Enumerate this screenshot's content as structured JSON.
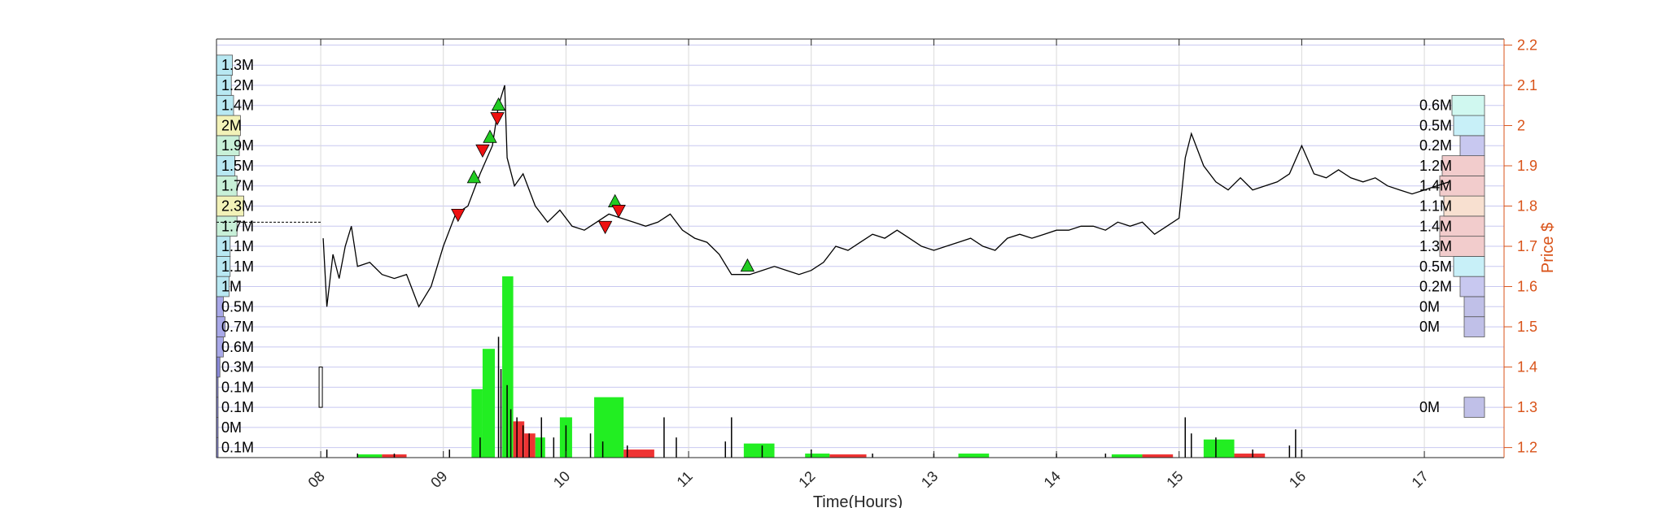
{
  "chart_data": {
    "type": "candlestick-volume",
    "xlabel": "Time(Hours)",
    "ylabel": "Price $",
    "x_ticks": [
      "08",
      "09",
      "10",
      "11",
      "12",
      "13",
      "14",
      "15",
      "16",
      "17"
    ],
    "xlim": [
      7.15,
      17.65
    ],
    "ylim": [
      1.175,
      2.215
    ],
    "y_ticks": [
      1.2,
      1.3,
      1.4,
      1.5,
      1.6,
      1.7,
      1.8,
      1.9,
      2.0,
      2.1,
      2.2
    ],
    "y_tick_labels": [
      "1.2",
      "1.3",
      "1.4",
      "1.5",
      "1.6",
      "1.7",
      "1.8",
      "1.9",
      "2",
      "2.1",
      "2.2"
    ],
    "colors": {
      "price_axis": "#D95319",
      "grid": "#C8C8F0",
      "buy_volume": "#22EE22",
      "sell_volume": "#EE3333",
      "buy_marker": "#22CC22",
      "sell_marker": "#EE1111"
    },
    "price_series": {
      "points": [
        [
          8.02,
          1.72
        ],
        [
          8.05,
          1.55
        ],
        [
          8.1,
          1.68
        ],
        [
          8.15,
          1.62
        ],
        [
          8.2,
          1.7
        ],
        [
          8.25,
          1.75
        ],
        [
          8.3,
          1.65
        ],
        [
          8.4,
          1.66
        ],
        [
          8.5,
          1.63
        ],
        [
          8.6,
          1.62
        ],
        [
          8.7,
          1.63
        ],
        [
          8.8,
          1.55
        ],
        [
          8.9,
          1.6
        ],
        [
          9.0,
          1.7
        ],
        [
          9.1,
          1.78
        ],
        [
          9.2,
          1.8
        ],
        [
          9.3,
          1.88
        ],
        [
          9.4,
          1.95
        ],
        [
          9.45,
          2.05
        ],
        [
          9.5,
          2.1
        ],
        [
          9.52,
          1.92
        ],
        [
          9.58,
          1.85
        ],
        [
          9.65,
          1.88
        ],
        [
          9.75,
          1.8
        ],
        [
          9.85,
          1.76
        ],
        [
          9.95,
          1.79
        ],
        [
          10.05,
          1.75
        ],
        [
          10.15,
          1.74
        ],
        [
          10.25,
          1.76
        ],
        [
          10.35,
          1.78
        ],
        [
          10.45,
          1.77
        ],
        [
          10.55,
          1.76
        ],
        [
          10.65,
          1.75
        ],
        [
          10.75,
          1.76
        ],
        [
          10.85,
          1.78
        ],
        [
          10.95,
          1.74
        ],
        [
          11.05,
          1.72
        ],
        [
          11.15,
          1.71
        ],
        [
          11.25,
          1.68
        ],
        [
          11.35,
          1.63
        ],
        [
          11.5,
          1.63
        ],
        [
          11.6,
          1.64
        ],
        [
          11.7,
          1.65
        ],
        [
          11.8,
          1.64
        ],
        [
          11.9,
          1.63
        ],
        [
          12.0,
          1.64
        ],
        [
          12.1,
          1.66
        ],
        [
          12.2,
          1.7
        ],
        [
          12.3,
          1.69
        ],
        [
          12.4,
          1.71
        ],
        [
          12.5,
          1.73
        ],
        [
          12.6,
          1.72
        ],
        [
          12.7,
          1.74
        ],
        [
          12.8,
          1.72
        ],
        [
          12.9,
          1.7
        ],
        [
          13.0,
          1.69
        ],
        [
          13.1,
          1.7
        ],
        [
          13.2,
          1.71
        ],
        [
          13.3,
          1.72
        ],
        [
          13.4,
          1.7
        ],
        [
          13.5,
          1.69
        ],
        [
          13.6,
          1.72
        ],
        [
          13.7,
          1.73
        ],
        [
          13.8,
          1.72
        ],
        [
          13.9,
          1.73
        ],
        [
          14.0,
          1.74
        ],
        [
          14.1,
          1.74
        ],
        [
          14.2,
          1.75
        ],
        [
          14.3,
          1.75
        ],
        [
          14.4,
          1.74
        ],
        [
          14.5,
          1.76
        ],
        [
          14.6,
          1.75
        ],
        [
          14.7,
          1.76
        ],
        [
          14.8,
          1.73
        ],
        [
          14.9,
          1.75
        ],
        [
          15.0,
          1.77
        ],
        [
          15.05,
          1.92
        ],
        [
          15.1,
          1.98
        ],
        [
          15.2,
          1.9
        ],
        [
          15.3,
          1.86
        ],
        [
          15.4,
          1.84
        ],
        [
          15.5,
          1.87
        ],
        [
          15.6,
          1.84
        ],
        [
          15.7,
          1.85
        ],
        [
          15.8,
          1.86
        ],
        [
          15.9,
          1.88
        ],
        [
          16.0,
          1.95
        ],
        [
          16.1,
          1.88
        ],
        [
          16.2,
          1.87
        ],
        [
          16.3,
          1.89
        ],
        [
          16.4,
          1.87
        ],
        [
          16.5,
          1.86
        ],
        [
          16.6,
          1.87
        ],
        [
          16.7,
          1.85
        ],
        [
          16.8,
          1.84
        ],
        [
          16.9,
          1.83
        ],
        [
          17.0,
          1.84
        ],
        [
          17.1,
          1.85
        ],
        [
          17.2,
          1.86
        ]
      ]
    },
    "early_trade": {
      "x": 8.0,
      "y_low": 1.3,
      "y_high": 1.4
    },
    "prev_close_line": {
      "x_start": 7.15,
      "x_end": 8.0,
      "y": 1.76
    },
    "buy_markers": [
      [
        9.25,
        1.87
      ],
      [
        9.38,
        1.97
      ],
      [
        9.45,
        2.05
      ],
      [
        10.4,
        1.81
      ],
      [
        11.48,
        1.65
      ]
    ],
    "sell_markers": [
      [
        9.12,
        1.78
      ],
      [
        9.32,
        1.94
      ],
      [
        9.44,
        2.02
      ],
      [
        10.32,
        1.75
      ],
      [
        10.43,
        1.79
      ]
    ],
    "volume_bars": [
      {
        "x0": 9.23,
        "x1": 9.32,
        "v": 0.17,
        "side": "buy"
      },
      {
        "x0": 9.32,
        "x1": 9.42,
        "v": 0.27,
        "side": "buy"
      },
      {
        "x0": 9.48,
        "x1": 9.57,
        "v": 0.45,
        "side": "buy"
      },
      {
        "x0": 9.57,
        "x1": 9.66,
        "v": 0.09,
        "side": "sell"
      },
      {
        "x0": 9.66,
        "x1": 9.75,
        "v": 0.06,
        "side": "sell"
      },
      {
        "x0": 9.75,
        "x1": 9.83,
        "v": 0.05,
        "side": "buy"
      },
      {
        "x0": 9.95,
        "x1": 10.05,
        "v": 0.1,
        "side": "buy"
      },
      {
        "x0": 10.23,
        "x1": 10.47,
        "v": 0.15,
        "side": "buy"
      },
      {
        "x0": 10.47,
        "x1": 10.72,
        "v": 0.02,
        "side": "sell"
      },
      {
        "x0": 11.45,
        "x1": 11.7,
        "v": 0.035,
        "side": "buy"
      },
      {
        "x0": 11.95,
        "x1": 12.15,
        "v": 0.01,
        "side": "buy"
      },
      {
        "x0": 12.15,
        "x1": 12.45,
        "v": 0.008,
        "side": "sell"
      },
      {
        "x0": 13.2,
        "x1": 13.45,
        "v": 0.01,
        "side": "buy"
      },
      {
        "x0": 14.45,
        "x1": 14.7,
        "v": 0.008,
        "side": "buy"
      },
      {
        "x0": 14.7,
        "x1": 14.95,
        "v": 0.008,
        "side": "sell"
      },
      {
        "x0": 15.2,
        "x1": 15.45,
        "v": 0.045,
        "side": "buy"
      },
      {
        "x0": 15.45,
        "x1": 15.7,
        "v": 0.01,
        "side": "sell"
      },
      {
        "x0": 8.3,
        "x1": 8.5,
        "v": 0.008,
        "side": "buy"
      },
      {
        "x0": 8.5,
        "x1": 8.7,
        "v": 0.008,
        "side": "sell"
      }
    ],
    "volume_spikes": [
      [
        8.05,
        0.02
      ],
      [
        8.3,
        0.01
      ],
      [
        8.6,
        0.01
      ],
      [
        9.05,
        0.02
      ],
      [
        9.3,
        0.05
      ],
      [
        9.45,
        0.3
      ],
      [
        9.47,
        0.22
      ],
      [
        9.52,
        0.18
      ],
      [
        9.55,
        0.12
      ],
      [
        9.6,
        0.1
      ],
      [
        9.65,
        0.08
      ],
      [
        9.7,
        0.06
      ],
      [
        9.8,
        0.1
      ],
      [
        9.9,
        0.05
      ],
      [
        10.0,
        0.08
      ],
      [
        10.2,
        0.06
      ],
      [
        10.3,
        0.04
      ],
      [
        10.5,
        0.03
      ],
      [
        10.8,
        0.1
      ],
      [
        10.9,
        0.05
      ],
      [
        11.3,
        0.04
      ],
      [
        11.35,
        0.1
      ],
      [
        11.6,
        0.03
      ],
      [
        12.0,
        0.02
      ],
      [
        12.5,
        0.01
      ],
      [
        13.0,
        0.01
      ],
      [
        14.0,
        0.01
      ],
      [
        14.4,
        0.01
      ],
      [
        15.05,
        0.1
      ],
      [
        15.1,
        0.06
      ],
      [
        15.3,
        0.05
      ],
      [
        15.6,
        0.02
      ],
      [
        15.9,
        0.03
      ],
      [
        15.95,
        0.07
      ],
      [
        16.0,
        0.02
      ]
    ],
    "left_profile": [
      {
        "price": 1.2,
        "label": "0.1M",
        "rel": 0.01,
        "color": "#8A8ADB"
      },
      {
        "price": 1.25,
        "label": "0M",
        "rel": 0.0,
        "color": "#8A8ADB"
      },
      {
        "price": 1.3,
        "label": "0.1M",
        "rel": 0.01,
        "color": "#8A8ADB"
      },
      {
        "price": 1.35,
        "label": "0.1M",
        "rel": 0.01,
        "color": "#8A8ADB"
      },
      {
        "price": 1.4,
        "label": "0.3M",
        "rel": 0.06,
        "color": "#8A8ADB"
      },
      {
        "price": 1.45,
        "label": "0.6M",
        "rel": 0.12,
        "color": "#A8A8E8"
      },
      {
        "price": 1.5,
        "label": "0.7M",
        "rel": 0.15,
        "color": "#A8A8E8"
      },
      {
        "price": 1.55,
        "label": "0.5M",
        "rel": 0.12,
        "color": "#A8A8E8"
      },
      {
        "price": 1.6,
        "label": "1M",
        "rel": 0.22,
        "color": "#B8E8F2"
      },
      {
        "price": 1.65,
        "label": "1.1M",
        "rel": 0.24,
        "color": "#B8E8F2"
      },
      {
        "price": 1.7,
        "label": "1.1M",
        "rel": 0.24,
        "color": "#B8E8F2"
      },
      {
        "price": 1.75,
        "label": "1.7M",
        "rel": 0.36,
        "color": "#C8F0D8"
      },
      {
        "price": 1.8,
        "label": "2.3M",
        "rel": 0.48,
        "color": "#F2F2B8"
      },
      {
        "price": 1.85,
        "label": "1.7M",
        "rel": 0.36,
        "color": "#C8F0D8"
      },
      {
        "price": 1.9,
        "label": "1.5M",
        "rel": 0.32,
        "color": "#B8E8F2"
      },
      {
        "price": 1.95,
        "label": "1.9M",
        "rel": 0.4,
        "color": "#C8F0D8"
      },
      {
        "price": 2.0,
        "label": "2M",
        "rel": 0.42,
        "color": "#F2F2B8"
      },
      {
        "price": 2.05,
        "label": "1.4M",
        "rel": 0.3,
        "color": "#B8E8F2"
      },
      {
        "price": 2.1,
        "label": "1.2M",
        "rel": 0.26,
        "color": "#B8E8F2"
      },
      {
        "price": 2.15,
        "label": "1.3M",
        "rel": 0.28,
        "color": "#B8E8F2"
      }
    ],
    "right_profile": [
      {
        "price": 1.3,
        "label": "0M",
        "rel": 0.25,
        "color": "#C0C0E8"
      },
      {
        "price": 1.5,
        "label": "0M",
        "rel": 0.25,
        "color": "#C0C0E8"
      },
      {
        "price": 1.55,
        "label": "0M",
        "rel": 0.25,
        "color": "#C0C0E8"
      },
      {
        "price": 1.6,
        "label": "0.2M",
        "rel": 0.3,
        "color": "#C8C8F0"
      },
      {
        "price": 1.65,
        "label": "0.5M",
        "rel": 0.38,
        "color": "#C8F0F8"
      },
      {
        "price": 1.7,
        "label": "1.3M",
        "rel": 0.55,
        "color": "#F2CCCC"
      },
      {
        "price": 1.75,
        "label": "1.4M",
        "rel": 0.55,
        "color": "#F2CCCC"
      },
      {
        "price": 1.8,
        "label": "1.1M",
        "rel": 0.5,
        "color": "#F8E0D0"
      },
      {
        "price": 1.85,
        "label": "1.4M",
        "rel": 0.55,
        "color": "#F2CCCC"
      },
      {
        "price": 1.9,
        "label": "1.2M",
        "rel": 0.52,
        "color": "#F2CCCC"
      },
      {
        "price": 1.95,
        "label": "0.2M",
        "rel": 0.3,
        "color": "#C8C8F0"
      },
      {
        "price": 2.0,
        "label": "0.5M",
        "rel": 0.38,
        "color": "#C8F0F8"
      },
      {
        "price": 2.05,
        "label": "0.6M",
        "rel": 0.4,
        "color": "#D0F8F0"
      }
    ]
  }
}
